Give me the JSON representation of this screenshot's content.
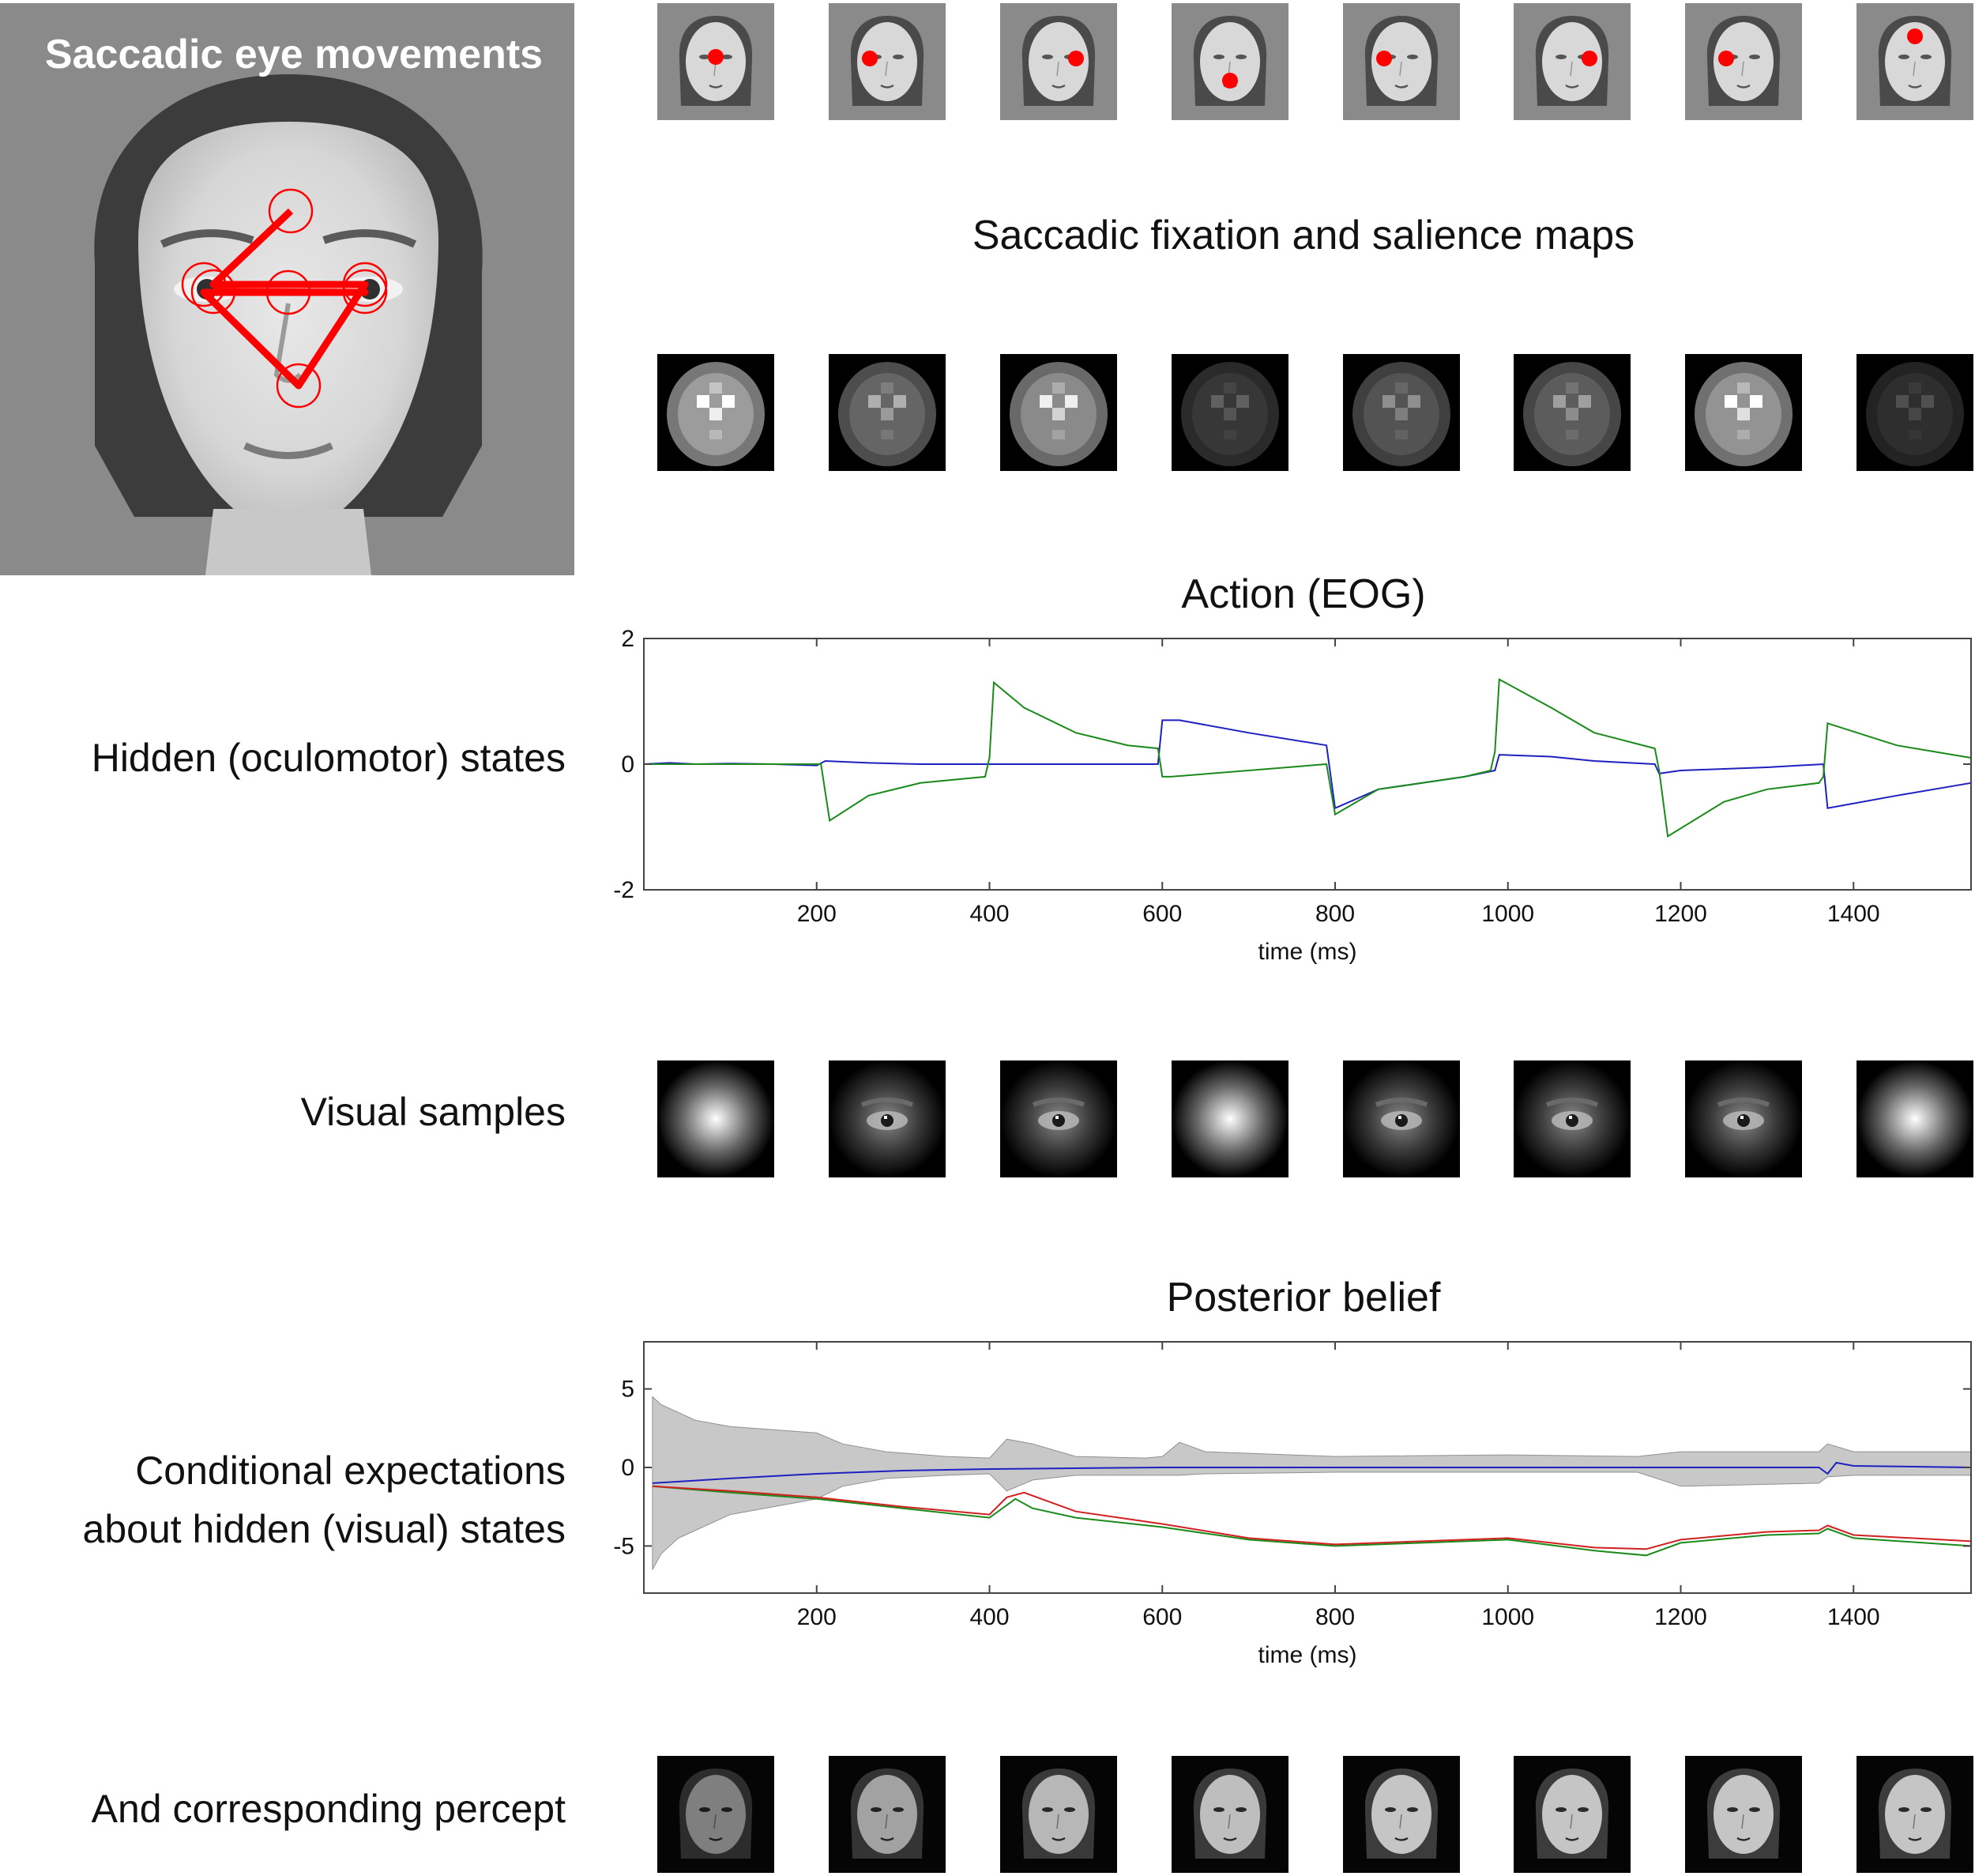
{
  "main_panel": {
    "title": "Saccadic eye movements",
    "fixation_path_color": "#ff0000"
  },
  "rows": {
    "fixation_title": "Saccadic fixation and salience maps",
    "action_title": "Action (EOG)",
    "hidden_states_label": "Hidden (oculomotor) states",
    "visual_samples_label": "Visual samples",
    "posterior_title": "Posterior belief",
    "conditional_label_line1": "Conditional expectations",
    "conditional_label_line2": "about hidden (visual) states",
    "percept_label": "And corresponding percept"
  },
  "fixation_frames": [
    {
      "dot": "nose bridge"
    },
    {
      "dot": "left eye"
    },
    {
      "dot": "right eye"
    },
    {
      "dot": "nose/mouth"
    },
    {
      "dot": "left eye"
    },
    {
      "dot": "right eye"
    },
    {
      "dot": "left eye"
    },
    {
      "dot": "forehead"
    }
  ],
  "salience_brightness": [
    0.85,
    0.55,
    0.75,
    0.3,
    0.45,
    0.5,
    0.8,
    0.25
  ],
  "visual_sample_kind": [
    "blur",
    "eye",
    "eye",
    "blur",
    "eye",
    "eye",
    "eye",
    "blur"
  ],
  "percept_brightness": [
    0.45,
    0.7,
    0.85,
    0.9,
    0.95,
    0.95,
    0.95,
    0.95
  ],
  "colors": {
    "blue_series": "#2020c0",
    "green_series": "#1a8a1a",
    "red_series": "#d02020",
    "ci_band": "#c8c8c8"
  },
  "chart_data": [
    {
      "type": "line",
      "title": "Action (EOG)",
      "xlabel": "time (ms)",
      "ylabel": "",
      "xlim": [
        0,
        1536
      ],
      "ylim": [
        -2,
        2
      ],
      "xticks": [
        200,
        400,
        600,
        800,
        1000,
        1200,
        1400
      ],
      "yticks": [
        -2,
        0,
        2
      ],
      "series": [
        {
          "color": "#2020c0",
          "x": [
            0,
            30,
            60,
            100,
            150,
            200,
            210,
            260,
            320,
            400,
            405,
            500,
            560,
            595,
            600,
            620,
            700,
            790,
            800,
            850,
            950,
            985,
            990,
            1050,
            1100,
            1170,
            1175,
            1200,
            1300,
            1365,
            1370,
            1450,
            1536
          ],
          "y": [
            0,
            0.02,
            0,
            0.01,
            0,
            -0.02,
            0.05,
            0.02,
            0,
            0,
            0,
            0,
            0,
            0,
            0.7,
            0.7,
            0.5,
            0.3,
            -0.7,
            -0.4,
            -0.2,
            -0.1,
            0.15,
            0.12,
            0.05,
            0,
            -0.15,
            -0.1,
            -0.05,
            0,
            -0.7,
            -0.5,
            -0.3
          ]
        },
        {
          "color": "#1a8a1a",
          "x": [
            0,
            100,
            200,
            205,
            215,
            260,
            320,
            395,
            400,
            405,
            440,
            500,
            560,
            595,
            600,
            610,
            700,
            790,
            800,
            850,
            950,
            980,
            985,
            990,
            1050,
            1100,
            1170,
            1175,
            1185,
            1250,
            1300,
            1360,
            1365,
            1370,
            1450,
            1536
          ],
          "y": [
            0,
            0,
            0,
            0,
            -0.9,
            -0.5,
            -0.3,
            -0.2,
            0.1,
            1.3,
            0.9,
            0.5,
            0.3,
            0.25,
            -0.2,
            -0.2,
            -0.1,
            0,
            -0.8,
            -0.4,
            -0.2,
            -0.1,
            0.2,
            1.35,
            0.9,
            0.5,
            0.25,
            -0.1,
            -1.15,
            -0.6,
            -0.4,
            -0.3,
            -0.2,
            0.65,
            0.3,
            0.1
          ]
        }
      ]
    },
    {
      "type": "line",
      "title": "Posterior belief",
      "xlabel": "time (ms)",
      "ylabel": "",
      "xlim": [
        0,
        1536
      ],
      "ylim": [
        -8,
        8
      ],
      "xticks": [
        200,
        400,
        600,
        800,
        1000,
        1200,
        1400
      ],
      "yticks": [
        -5,
        0,
        5
      ],
      "band": {
        "color": "#c8c8c8",
        "x": [
          10,
          20,
          40,
          60,
          100,
          150,
          200,
          230,
          280,
          350,
          400,
          420,
          450,
          500,
          580,
          600,
          620,
          650,
          800,
          1000,
          1150,
          1200,
          1360,
          1370,
          1400,
          1536
        ],
        "upper": [
          4.5,
          4,
          3.5,
          3,
          2.6,
          2.4,
          2.2,
          1.5,
          1,
          0.7,
          0.6,
          1.8,
          1.5,
          0.7,
          0.6,
          0.7,
          1.6,
          1.0,
          0.7,
          0.8,
          0.7,
          1.0,
          1.0,
          1.5,
          1.0,
          1.0
        ],
        "lower": [
          -6.5,
          -5.5,
          -4.5,
          -4,
          -3,
          -2.5,
          -2,
          -1.2,
          -0.7,
          -0.5,
          -0.4,
          -1.5,
          -0.8,
          -0.5,
          -0.5,
          -0.5,
          -0.5,
          -0.4,
          -0.3,
          -0.3,
          -0.3,
          -1.2,
          -1.0,
          -0.6,
          -0.5,
          -0.5
        ]
      },
      "series": [
        {
          "color": "#2020c0",
          "x": [
            10,
            100,
            200,
            300,
            400,
            600,
            800,
            1000,
            1200,
            1360,
            1370,
            1380,
            1400,
            1536
          ],
          "y": [
            -1,
            -0.7,
            -0.4,
            -0.2,
            -0.1,
            0,
            0,
            0,
            0,
            0,
            -0.4,
            0.3,
            0.1,
            0
          ]
        },
        {
          "color": "#1a8a1a",
          "x": [
            10,
            100,
            200,
            300,
            400,
            430,
            450,
            500,
            600,
            700,
            800,
            900,
            1000,
            1100,
            1160,
            1200,
            1300,
            1360,
            1370,
            1400,
            1536
          ],
          "y": [
            -1.2,
            -1.6,
            -2.0,
            -2.6,
            -3.2,
            -2.0,
            -2.6,
            -3.2,
            -3.8,
            -4.6,
            -5.0,
            -4.8,
            -4.6,
            -5.3,
            -5.6,
            -4.8,
            -4.3,
            -4.2,
            -3.9,
            -4.5,
            -5.0
          ]
        },
        {
          "color": "#d02020",
          "x": [
            10,
            100,
            200,
            300,
            400,
            420,
            440,
            500,
            600,
            700,
            800,
            900,
            1000,
            1100,
            1160,
            1200,
            1300,
            1360,
            1370,
            1400,
            1536
          ],
          "y": [
            -1.2,
            -1.5,
            -1.9,
            -2.5,
            -3.0,
            -1.9,
            -1.6,
            -2.8,
            -3.6,
            -4.5,
            -4.9,
            -4.7,
            -4.5,
            -5.1,
            -5.2,
            -4.6,
            -4.1,
            -4.0,
            -3.7,
            -4.3,
            -4.7
          ]
        }
      ]
    }
  ]
}
